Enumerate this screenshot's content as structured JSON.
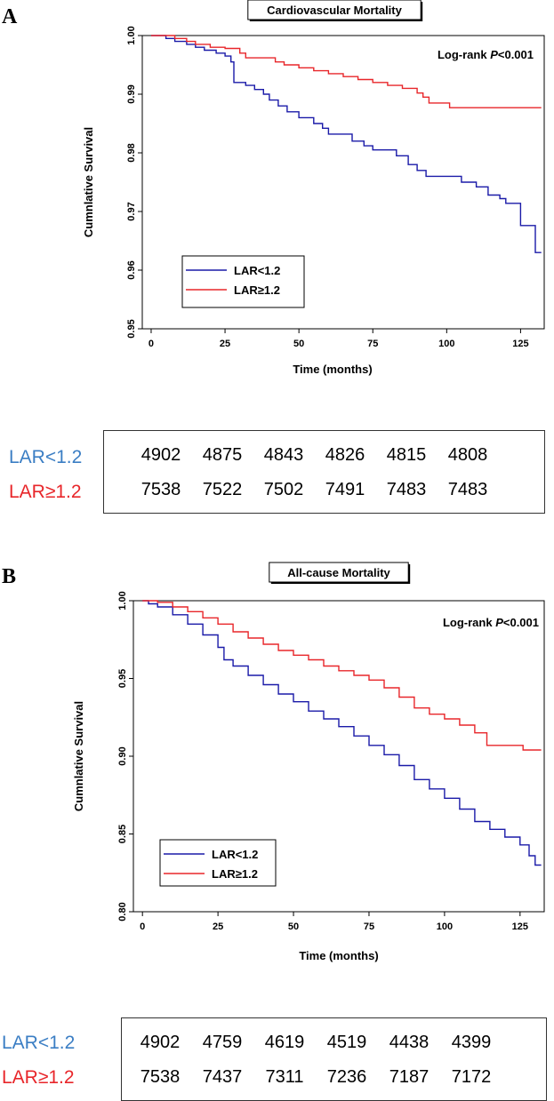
{
  "colors": {
    "lar_low": "#1a1aa8",
    "lar_high": "#e8262a",
    "label_low": "#3b7ec4",
    "label_high": "#e8262a"
  },
  "chart_data": [
    {
      "panel": "A",
      "type": "line",
      "title": "Cardiovascular Mortality",
      "xlabel": "Time (months)",
      "ylabel": "Cumnlative Survival",
      "xlim": [
        -3,
        133
      ],
      "ylim": [
        0.95,
        1.0
      ],
      "xticks": [
        0,
        25,
        50,
        75,
        100,
        125
      ],
      "xtick_labels": [
        "0",
        "25",
        "50",
        "75",
        "100",
        "125"
      ],
      "yticks": [
        0.95,
        0.96,
        0.97,
        0.98,
        0.99,
        1.0
      ],
      "ytick_labels": [
        "0.95",
        "0.96",
        "0.97",
        "0.98",
        "0.99",
        "1.00"
      ],
      "annotation": {
        "prefix": "Log-rank ",
        "p": "P",
        "suffix": "<0.001"
      },
      "legend_position": "bottom-left",
      "series": [
        {
          "name": "LAR<1.2",
          "color_key": "lar_low",
          "points": [
            [
              0,
              1.0
            ],
            [
              3,
              1.0
            ],
            [
              5,
              0.9995
            ],
            [
              8,
              0.999
            ],
            [
              12,
              0.9985
            ],
            [
              15,
              0.998
            ],
            [
              18,
              0.9975
            ],
            [
              22,
              0.997
            ],
            [
              25,
              0.9965
            ],
            [
              27,
              0.9955
            ],
            [
              28,
              0.992
            ],
            [
              32,
              0.9915
            ],
            [
              35,
              0.9908
            ],
            [
              38,
              0.99
            ],
            [
              40,
              0.989
            ],
            [
              43,
              0.988
            ],
            [
              46,
              0.987
            ],
            [
              50,
              0.986
            ],
            [
              55,
              0.985
            ],
            [
              58,
              0.9842
            ],
            [
              60,
              0.9832
            ],
            [
              65,
              0.9832
            ],
            [
              68,
              0.982
            ],
            [
              72,
              0.9812
            ],
            [
              75,
              0.9805
            ],
            [
              80,
              0.9805
            ],
            [
              83,
              0.9795
            ],
            [
              87,
              0.978
            ],
            [
              90,
              0.977
            ],
            [
              93,
              0.976
            ],
            [
              100,
              0.976
            ],
            [
              105,
              0.975
            ],
            [
              110,
              0.9742
            ],
            [
              114,
              0.9728
            ],
            [
              118,
              0.9722
            ],
            [
              120,
              0.9714
            ],
            [
              124,
              0.9714
            ],
            [
              125,
              0.9676
            ],
            [
              129,
              0.9676
            ],
            [
              130,
              0.963
            ],
            [
              132,
              0.963
            ]
          ]
        },
        {
          "name": "LAR≥1.2",
          "color_key": "lar_high",
          "points": [
            [
              0,
              1.0
            ],
            [
              5,
              1.0
            ],
            [
              8,
              0.9995
            ],
            [
              12,
              0.999
            ],
            [
              15,
              0.9985
            ],
            [
              20,
              0.998
            ],
            [
              25,
              0.9978
            ],
            [
              30,
              0.997
            ],
            [
              32,
              0.9962
            ],
            [
              40,
              0.9962
            ],
            [
              42,
              0.9955
            ],
            [
              45,
              0.995
            ],
            [
              50,
              0.9945
            ],
            [
              55,
              0.994
            ],
            [
              60,
              0.9935
            ],
            [
              65,
              0.993
            ],
            [
              70,
              0.9925
            ],
            [
              75,
              0.992
            ],
            [
              80,
              0.9915
            ],
            [
              85,
              0.991
            ],
            [
              90,
              0.9902
            ],
            [
              92,
              0.9895
            ],
            [
              94,
              0.9885
            ],
            [
              100,
              0.9885
            ],
            [
              101,
              0.9877
            ],
            [
              132,
              0.9877
            ]
          ]
        }
      ],
      "risk_table": {
        "rows": [
          {
            "label": "LAR<1.2",
            "color_key": "label_low",
            "values": [
              "4902",
              "4875",
              "4843",
              "4826",
              "4815",
              "4808"
            ]
          },
          {
            "label": "LAR≥1.2",
            "color_key": "label_high",
            "values": [
              "7538",
              "7522",
              "7502",
              "7491",
              "7483",
              "7483"
            ]
          }
        ]
      }
    },
    {
      "panel": "B",
      "type": "line",
      "title": "All-cause Mortality",
      "xlabel": "Time (months)",
      "ylabel": "Cumnlative Survival",
      "xlim": [
        -3,
        133
      ],
      "ylim": [
        0.8,
        1.0
      ],
      "xticks": [
        0,
        25,
        50,
        75,
        100,
        125
      ],
      "xtick_labels": [
        "0",
        "25",
        "50",
        "75",
        "100",
        "125"
      ],
      "yticks": [
        0.8,
        0.85,
        0.9,
        0.95,
        1.0
      ],
      "ytick_labels": [
        "0.80",
        "0.85",
        "0.90",
        "0.95",
        "1.00"
      ],
      "annotation": {
        "prefix": "Log-rank ",
        "p": "P",
        "suffix": "<0.001"
      },
      "legend_position": "bottom-left",
      "series": [
        {
          "name": "LAR<1.2",
          "color_key": "lar_low",
          "points": [
            [
              0,
              1.0
            ],
            [
              2,
              0.998
            ],
            [
              5,
              0.996
            ],
            [
              10,
              0.991
            ],
            [
              15,
              0.985
            ],
            [
              20,
              0.978
            ],
            [
              25,
              0.97
            ],
            [
              27,
              0.962
            ],
            [
              30,
              0.958
            ],
            [
              35,
              0.952
            ],
            [
              40,
              0.946
            ],
            [
              45,
              0.94
            ],
            [
              50,
              0.935
            ],
            [
              55,
              0.929
            ],
            [
              60,
              0.924
            ],
            [
              65,
              0.919
            ],
            [
              70,
              0.913
            ],
            [
              75,
              0.907
            ],
            [
              80,
              0.901
            ],
            [
              85,
              0.894
            ],
            [
              90,
              0.885
            ],
            [
              95,
              0.879
            ],
            [
              100,
              0.873
            ],
            [
              105,
              0.866
            ],
            [
              110,
              0.858
            ],
            [
              115,
              0.853
            ],
            [
              120,
              0.848
            ],
            [
              125,
              0.843
            ],
            [
              128,
              0.836
            ],
            [
              130,
              0.83
            ],
            [
              132,
              0.83
            ]
          ]
        },
        {
          "name": "LAR≥1.2",
          "color_key": "lar_high",
          "points": [
            [
              0,
              1.0
            ],
            [
              5,
              0.999
            ],
            [
              10,
              0.996
            ],
            [
              15,
              0.993
            ],
            [
              20,
              0.989
            ],
            [
              25,
              0.985
            ],
            [
              30,
              0.98
            ],
            [
              35,
              0.976
            ],
            [
              40,
              0.972
            ],
            [
              45,
              0.968
            ],
            [
              50,
              0.965
            ],
            [
              55,
              0.962
            ],
            [
              60,
              0.958
            ],
            [
              65,
              0.955
            ],
            [
              70,
              0.952
            ],
            [
              75,
              0.949
            ],
            [
              80,
              0.944
            ],
            [
              85,
              0.938
            ],
            [
              90,
              0.931
            ],
            [
              95,
              0.927
            ],
            [
              100,
              0.924
            ],
            [
              105,
              0.92
            ],
            [
              110,
              0.915
            ],
            [
              113,
              0.915
            ],
            [
              114,
              0.907
            ],
            [
              125,
              0.907
            ],
            [
              126,
              0.904
            ],
            [
              132,
              0.904
            ]
          ]
        }
      ],
      "risk_table": {
        "rows": [
          {
            "label": "LAR<1.2",
            "color_key": "label_low",
            "values": [
              "4902",
              "4759",
              "4619",
              "4519",
              "4438",
              "4399"
            ]
          },
          {
            "label": "LAR≥1.2",
            "color_key": "label_high",
            "values": [
              "7538",
              "7437",
              "7311",
              "7236",
              "7187",
              "7172"
            ]
          }
        ]
      }
    }
  ]
}
